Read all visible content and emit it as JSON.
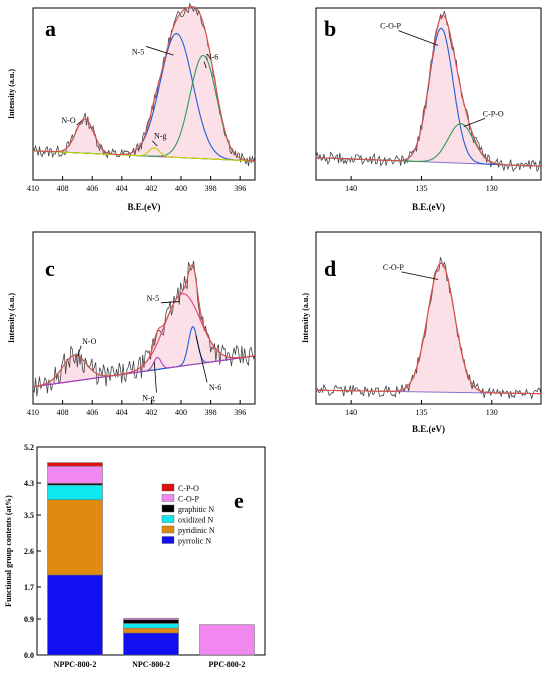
{
  "chart_data": [
    {
      "type": "line",
      "panel": "a",
      "xlabel": "B.E.(eV)",
      "ylabel": "Intensity (a.u.)",
      "xlim": [
        410,
        395
      ],
      "xticks": [
        410,
        408,
        406,
        404,
        402,
        400,
        398,
        396
      ],
      "ylim": [
        0,
        1
      ],
      "baseline": [
        [
          410,
          0.17
        ],
        [
          395,
          0.11
        ]
      ],
      "peaks": [
        {
          "label": "N-O",
          "center": 406.5,
          "height": 0.2,
          "width": 0.6,
          "color": "#d65a9a"
        },
        {
          "label": "N-5",
          "center": 400.3,
          "height": 0.72,
          "width": 1.1,
          "color": "#1f5fd6"
        },
        {
          "label": "N-6",
          "center": 398.5,
          "height": 0.6,
          "width": 0.9,
          "color": "#2f9a5a"
        },
        {
          "label": "N-g",
          "center": 401.8,
          "height": 0.05,
          "width": 0.35,
          "color": "#b8d800"
        }
      ],
      "annotations": [
        {
          "text": "N-O",
          "x": 407.6,
          "y": 0.33
        },
        {
          "text": "N-5",
          "x": 402.9,
          "y": 0.73
        },
        {
          "text": "N-6",
          "x": 397.9,
          "y": 0.7
        },
        {
          "text": "N-g",
          "x": 401.4,
          "y": 0.24
        }
      ]
    },
    {
      "type": "line",
      "panel": "b",
      "xlabel": "B.E.(eV)",
      "ylabel": "",
      "xlim": [
        142.5,
        126.5
      ],
      "xticks": [
        140,
        135,
        130
      ],
      "ylim": [
        0,
        1
      ],
      "baseline": [
        [
          142.5,
          0.13
        ],
        [
          126.5,
          0.08
        ]
      ],
      "peaks": [
        {
          "label": "C-O-P",
          "center": 133.6,
          "height": 0.78,
          "width": 0.85,
          "color": "#1f5fd6"
        },
        {
          "label": "C-P-O",
          "center": 132.2,
          "height": 0.23,
          "width": 0.9,
          "color": "#2f9a5a"
        }
      ],
      "annotations": [
        {
          "text": "C-O-P",
          "x": 137.2,
          "y": 0.88
        },
        {
          "text": "C-P-O",
          "x": 129.9,
          "y": 0.37
        }
      ]
    },
    {
      "type": "line",
      "panel": "c",
      "xlabel": "",
      "ylabel": "Intensity (a.u.)",
      "xlim": [
        410,
        395
      ],
      "xticks": [
        410,
        408,
        406,
        404,
        402,
        400,
        398,
        396
      ],
      "ylim": [
        0,
        1
      ],
      "baseline": [
        [
          410,
          0.1
        ],
        [
          395,
          0.28
        ]
      ],
      "peaks": [
        {
          "label": "N-O",
          "center": 407.2,
          "height": 0.15,
          "width": 0.8,
          "color": "#2f9a5a"
        },
        {
          "label": "N-5",
          "center": 399.9,
          "height": 0.42,
          "width": 1.2,
          "color": "#e0407a"
        },
        {
          "label": "N-6",
          "center": 399.2,
          "height": 0.22,
          "width": 0.3,
          "color": "#1f5fd6"
        },
        {
          "label": "N-g",
          "center": 401.6,
          "height": 0.07,
          "width": 0.25,
          "color": "#b040c0"
        }
      ],
      "annotations": [
        {
          "text": "N-O",
          "x": 406.2,
          "y": 0.35
        },
        {
          "text": "N-5",
          "x": 401.9,
          "y": 0.6
        },
        {
          "text": "N-6",
          "x": 397.7,
          "y": 0.08
        },
        {
          "text": "N-g",
          "x": 402.2,
          "y": 0.02
        }
      ]
    },
    {
      "type": "line",
      "panel": "d",
      "xlabel": "B.E.(eV)",
      "ylabel": "Intensity (a.u.)",
      "xlim": [
        142.5,
        126.5
      ],
      "xticks": [
        140,
        135,
        130
      ],
      "ylim": [
        0,
        1
      ],
      "baseline": [
        [
          142.5,
          0.08
        ],
        [
          126.5,
          0.06
        ]
      ],
      "peaks": [
        {
          "label": "C-O-P",
          "center": 133.6,
          "height": 0.75,
          "width": 0.95,
          "color": "#e06a5a"
        }
      ],
      "annotations": [
        {
          "text": "C-O-P",
          "x": 137.0,
          "y": 0.78
        }
      ]
    },
    {
      "type": "bar",
      "panel": "e",
      "stacked": true,
      "ylabel": "Functional group contents (at%)",
      "categories": [
        "NPPC-800-2",
        "NPC-800-2",
        "PPC-800-2"
      ],
      "ylim": [
        0,
        5.2
      ],
      "yticks": [
        "0.0",
        "0.9",
        "1.7",
        "2.6",
        "3.5",
        "4.3",
        "5.2"
      ],
      "legend_position": "top-right",
      "series": [
        {
          "name": "pyrrolic N",
          "color": "#1010f0",
          "values": [
            2.0,
            0.55,
            0
          ]
        },
        {
          "name": "pyridinic N",
          "color": "#e08a10",
          "values": [
            1.88,
            0.12,
            0
          ]
        },
        {
          "name": "oxidized N",
          "color": "#10e8f0",
          "values": [
            0.37,
            0.12,
            0
          ]
        },
        {
          "name": "graphitic N",
          "color": "#000000",
          "values": [
            0.04,
            0.09,
            0
          ]
        },
        {
          "name": "C-O-P",
          "color": "#f088f0",
          "values": [
            0.43,
            0.04,
            0.76
          ]
        },
        {
          "name": "C-P-O",
          "color": "#e01010",
          "values": [
            0.09,
            0,
            0
          ]
        }
      ]
    }
  ]
}
